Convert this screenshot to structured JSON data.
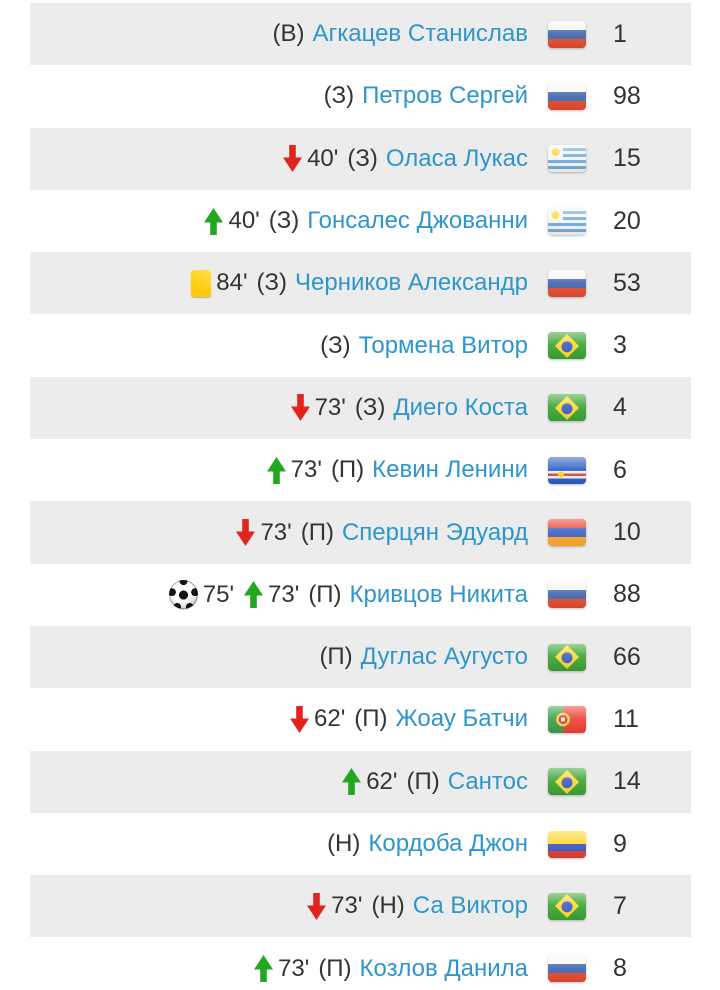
{
  "colors": {
    "row_shade": "#ececec",
    "row_white": "#ffffff",
    "link_blue": "#2e96cc",
    "text_dark": "#333333",
    "sub_in_green": "#22a81e",
    "sub_out_red": "#e3241d",
    "yellow_card": "#ffd117"
  },
  "icons": {
    "sub_out": "sub-out-arrow-icon",
    "sub_in": "sub-in-arrow-icon",
    "yellow_card": "yellow-card-icon",
    "goal": "goal-ball-icon"
  },
  "flags": {
    "ru": {
      "country": "Russia",
      "icon_name": "russia-flag-icon"
    },
    "uy": {
      "country": "Uruguay",
      "icon_name": "uruguay-flag-icon"
    },
    "br": {
      "country": "Brazil",
      "icon_name": "brazil-flag-icon"
    },
    "cv": {
      "country": "Cape Verde",
      "icon_name": "cape-verde-flag-icon"
    },
    "am": {
      "country": "Armenia",
      "icon_name": "armenia-flag-icon"
    },
    "pt": {
      "country": "Portugal",
      "icon_name": "portugal-flag-icon"
    },
    "co": {
      "country": "Colombia",
      "icon_name": "colombia-flag-icon"
    }
  },
  "rows": [
    {
      "events": [],
      "position": "(В)",
      "name": "Агкацев Станислав",
      "flag": "ru",
      "number": "1"
    },
    {
      "events": [],
      "position": "(З)",
      "name": "Петров Сергей",
      "flag": "ru",
      "number": "98"
    },
    {
      "events": [
        {
          "type": "sub_out",
          "minute": "40'"
        }
      ],
      "position": "(З)",
      "name": "Оласа Лукас",
      "flag": "uy",
      "number": "15"
    },
    {
      "events": [
        {
          "type": "sub_in",
          "minute": "40'"
        }
      ],
      "position": "(З)",
      "name": "Гонсалес Джованни",
      "flag": "uy",
      "number": "20"
    },
    {
      "events": [
        {
          "type": "yellow_card",
          "minute": "84'"
        }
      ],
      "position": "(З)",
      "name": "Черников Александр",
      "flag": "ru",
      "number": "53"
    },
    {
      "events": [],
      "position": "(З)",
      "name": "Тормена Витор",
      "flag": "br",
      "number": "3"
    },
    {
      "events": [
        {
          "type": "sub_out",
          "minute": "73'"
        }
      ],
      "position": "(З)",
      "name": "Диего Коста",
      "flag": "br",
      "number": "4"
    },
    {
      "events": [
        {
          "type": "sub_in",
          "minute": "73'"
        }
      ],
      "position": "(П)",
      "name": "Кевин Ленини",
      "flag": "cv",
      "number": "6"
    },
    {
      "events": [
        {
          "type": "sub_out",
          "minute": "73'"
        }
      ],
      "position": "(П)",
      "name": "Сперцян Эдуард",
      "flag": "am",
      "number": "10"
    },
    {
      "events": [
        {
          "type": "goal",
          "minute": "75'"
        },
        {
          "type": "sub_in",
          "minute": "73'"
        }
      ],
      "position": "(П)",
      "name": "Кривцов Никита",
      "flag": "ru",
      "number": "88"
    },
    {
      "events": [],
      "position": "(П)",
      "name": "Дуглас Аугусто",
      "flag": "br",
      "number": "66"
    },
    {
      "events": [
        {
          "type": "sub_out",
          "minute": "62'"
        }
      ],
      "position": "(П)",
      "name": "Жоау Батчи",
      "flag": "pt",
      "number": "11"
    },
    {
      "events": [
        {
          "type": "sub_in",
          "minute": "62'"
        }
      ],
      "position": "(П)",
      "name": "Сантос",
      "flag": "br",
      "number": "14"
    },
    {
      "events": [],
      "position": "(Н)",
      "name": "Кордоба Джон",
      "flag": "co",
      "number": "9"
    },
    {
      "events": [
        {
          "type": "sub_out",
          "minute": "73'"
        }
      ],
      "position": "(Н)",
      "name": "Са Виктор",
      "flag": "br",
      "number": "7"
    },
    {
      "events": [
        {
          "type": "sub_in",
          "minute": "73'"
        }
      ],
      "position": "(П)",
      "name": "Козлов Данила",
      "flag": "ru",
      "number": "8"
    }
  ]
}
